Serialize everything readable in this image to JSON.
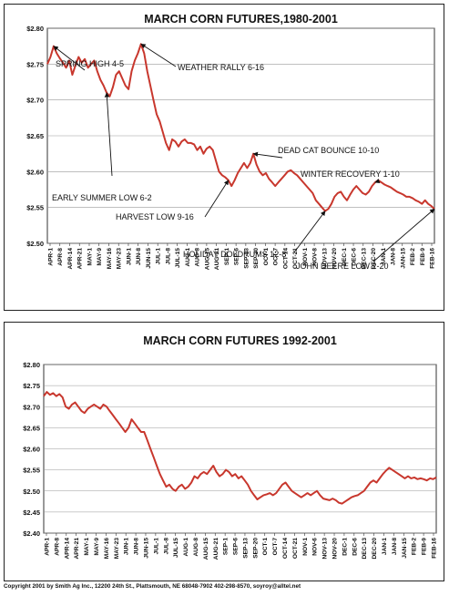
{
  "copyright": "Copyright 2001 by Smith Ag Inc., 12200 24th St., Plattsmouth, NE 68048-7902 402-298-8570, soyroy@alltel.net",
  "chart_data": [
    {
      "type": "line",
      "title": "MARCH CORN FUTURES,1980-2001",
      "xlabel": "",
      "ylabel": "",
      "ylim": [
        2.5,
        2.8
      ],
      "yticks": [
        "$2.50",
        "$2.55",
        "$2.60",
        "$2.65",
        "$2.70",
        "$2.75",
        "$2.80"
      ],
      "ytick_values": [
        2.5,
        2.55,
        2.6,
        2.65,
        2.7,
        2.75,
        2.8
      ],
      "grid": true,
      "line_color": "#c8372d",
      "xticks": [
        "APR-1",
        "APR-8",
        "APR-14",
        "APR-21",
        "MAY-1",
        "MAY-9",
        "MAY-16",
        "MAY-23",
        "JUN-1",
        "JUN-8",
        "JUN-15",
        "JUL-1",
        "JUL-8",
        "JUL-15",
        "AUG-1",
        "AUG-8",
        "AUG-15",
        "AUG-21",
        "SEP-1",
        "SEP-6",
        "SEP-13",
        "SEP-20",
        "OCT-1",
        "OCT-7",
        "OCT-14",
        "OCT-21",
        "NOV-1",
        "NOV-8",
        "NOV-13",
        "NOV-20",
        "DEC-1",
        "DEC-6",
        "DEC-13",
        "DEC-20",
        "JAN-1",
        "JAN-8",
        "JAN-15",
        "FEB-2",
        "FEB-9",
        "FEB-16"
      ],
      "values": [
        2.75,
        2.76,
        2.775,
        2.765,
        2.758,
        2.752,
        2.745,
        2.755,
        2.735,
        2.748,
        2.76,
        2.752,
        2.757,
        2.745,
        2.75,
        2.755,
        2.74,
        2.728,
        2.72,
        2.71,
        2.705,
        2.718,
        2.735,
        2.74,
        2.73,
        2.72,
        2.715,
        2.74,
        2.755,
        2.765,
        2.778,
        2.765,
        2.74,
        2.72,
        2.7,
        2.68,
        2.67,
        2.655,
        2.64,
        2.63,
        2.645,
        2.642,
        2.635,
        2.642,
        2.645,
        2.64,
        2.64,
        2.638,
        2.63,
        2.635,
        2.625,
        2.632,
        2.635,
        2.63,
        2.615,
        2.6,
        2.595,
        2.592,
        2.588,
        2.58,
        2.588,
        2.598,
        2.605,
        2.612,
        2.605,
        2.612,
        2.625,
        2.61,
        2.6,
        2.595,
        2.598,
        2.59,
        2.585,
        2.58,
        2.585,
        2.59,
        2.595,
        2.6,
        2.602,
        2.598,
        2.595,
        2.59,
        2.585,
        2.58,
        2.575,
        2.57,
        2.56,
        2.555,
        2.55,
        2.545,
        2.548,
        2.555,
        2.565,
        2.57,
        2.572,
        2.565,
        2.56,
        2.568,
        2.575,
        2.58,
        2.575,
        2.57,
        2.568,
        2.572,
        2.58,
        2.585,
        2.588,
        2.585,
        2.582,
        2.58,
        2.578,
        2.575,
        2.572,
        2.57,
        2.568,
        2.565,
        2.565,
        2.563,
        2.56,
        2.558,
        2.555,
        2.56,
        2.555,
        2.552,
        2.548
      ],
      "annotations": [
        {
          "text": "SPRING HIGH 4-5",
          "index": 2
        },
        {
          "text": "WEATHER RALLY 6-16",
          "index": 30
        },
        {
          "text": "EARLY SUMMER LOW 6-2",
          "index": 19
        },
        {
          "text": "DEAD CAT BOUNCE 10-10",
          "index": 66
        },
        {
          "text": "WINTER RECOVERY 1-10",
          "index": 105
        },
        {
          "text": "HARVEST LOW  9-16",
          "index": 58
        },
        {
          "text": "HOLIDAY DOLDRUMS 12-8",
          "index": 89
        },
        {
          "text": "JOHN DEERE LOW 2-20",
          "index": 124
        }
      ]
    },
    {
      "type": "line",
      "title": "MARCH CORN FUTURES 1992-2001",
      "xlabel": "",
      "ylabel": "",
      "ylim": [
        2.4,
        2.8
      ],
      "yticks": [
        "$2.40",
        "$2.45",
        "$2.50",
        "$2.55",
        "$2.60",
        "$2.65",
        "$2.70",
        "$2.75",
        "$2.80"
      ],
      "ytick_values": [
        2.4,
        2.45,
        2.5,
        2.55,
        2.6,
        2.65,
        2.7,
        2.75,
        2.8
      ],
      "grid": true,
      "line_color": "#c8372d",
      "xticks": [
        "APR-1",
        "APR-8",
        "APR-14",
        "APR-21",
        "MAY-1",
        "MAY-9",
        "MAY-16",
        "MAY-23",
        "JUN-1",
        "JUN-8",
        "JUN-15",
        "JUL-1",
        "JUL-8",
        "JUL-15",
        "AUG-1",
        "AUG-8",
        "AUG-15",
        "AUG-21",
        "SEP-1",
        "SEP-6",
        "SEP-13",
        "SEP-20",
        "OCT-1",
        "OCT-7",
        "OCT-14",
        "OCT-21",
        "NOV-1",
        "NOV-6",
        "NOV-13",
        "NOV-20",
        "DEC-1",
        "DEC-6",
        "DEC-13",
        "DEC-20",
        "JAN-1",
        "JAN-8",
        "JAN-15",
        "FEB-2",
        "FEB-9",
        "FEB-16"
      ],
      "values": [
        2.725,
        2.735,
        2.728,
        2.732,
        2.725,
        2.73,
        2.722,
        2.7,
        2.695,
        2.705,
        2.71,
        2.7,
        2.69,
        2.685,
        2.695,
        2.7,
        2.705,
        2.7,
        2.695,
        2.705,
        2.7,
        2.69,
        2.68,
        2.67,
        2.66,
        2.65,
        2.64,
        2.65,
        2.67,
        2.66,
        2.65,
        2.64,
        2.64,
        2.62,
        2.6,
        2.58,
        2.56,
        2.54,
        2.525,
        2.51,
        2.515,
        2.505,
        2.5,
        2.51,
        2.515,
        2.505,
        2.51,
        2.52,
        2.535,
        2.53,
        2.54,
        2.545,
        2.54,
        2.55,
        2.56,
        2.545,
        2.535,
        2.54,
        2.55,
        2.545,
        2.535,
        2.54,
        2.53,
        2.535,
        2.525,
        2.515,
        2.5,
        2.49,
        2.48,
        2.485,
        2.49,
        2.492,
        2.495,
        2.49,
        2.495,
        2.505,
        2.515,
        2.52,
        2.51,
        2.5,
        2.495,
        2.49,
        2.485,
        2.49,
        2.495,
        2.49,
        2.495,
        2.5,
        2.49,
        2.482,
        2.48,
        2.478,
        2.482,
        2.478,
        2.472,
        2.47,
        2.475,
        2.48,
        2.485,
        2.488,
        2.49,
        2.495,
        2.5,
        2.51,
        2.52,
        2.525,
        2.52,
        2.53,
        2.54,
        2.548,
        2.555,
        2.55,
        2.545,
        2.54,
        2.535,
        2.53,
        2.535,
        2.53,
        2.532,
        2.528,
        2.53,
        2.528,
        2.525,
        2.53,
        2.528,
        2.532
      ]
    }
  ]
}
